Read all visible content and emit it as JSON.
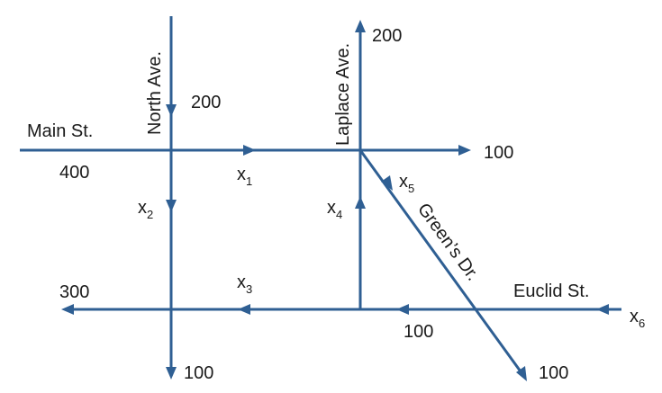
{
  "streets": {
    "main": "Main St.",
    "north": "North Ave.",
    "laplace": "Laplace Ave.",
    "greens": "Green’s Dr.",
    "euclid": "Euclid St."
  },
  "flows": {
    "main_in": "400",
    "north_in": "200",
    "laplace_out": "200",
    "main_out": "100",
    "bottom_left_out": "300",
    "north_out": "100",
    "euclid_mid": "100",
    "greens_out": "100"
  },
  "variables": {
    "x1": {
      "base": "x",
      "sub": "1"
    },
    "x2": {
      "base": "x",
      "sub": "2"
    },
    "x3": {
      "base": "x",
      "sub": "3"
    },
    "x4": {
      "base": "x",
      "sub": "4"
    },
    "x5": {
      "base": "x",
      "sub": "5"
    },
    "x6": {
      "base": "x",
      "sub": "6"
    }
  },
  "colors": {
    "road": "#2f5f93"
  }
}
